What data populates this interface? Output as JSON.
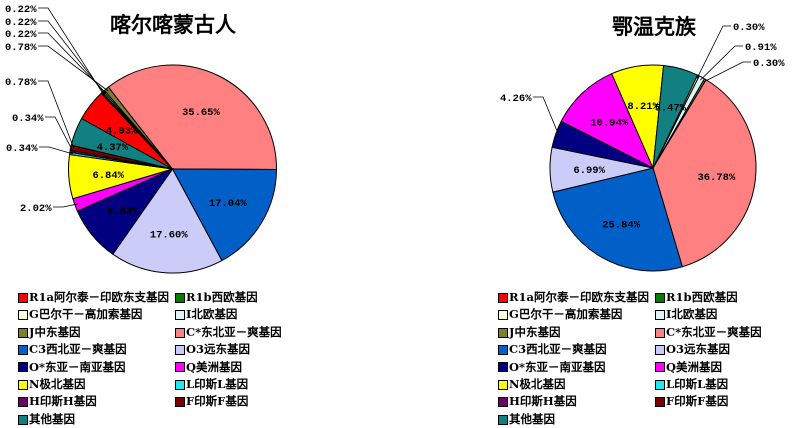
{
  "chart_data": [
    {
      "type": "pie",
      "title": "喀尔喀蒙古人",
      "categories": [
        "R1a阿尔泰－印欧东支基因",
        "R1b西欧基因",
        "G巴尔干－高加索基因",
        "I北欧基因",
        "J中东基因",
        "C*东北亚－爽基因",
        "C3西北亚－爽基因",
        "O3远东基因",
        "O*东亚－南亚基因",
        "Q美洲基因",
        "N极北基因",
        "L印斯L基因",
        "H印斯H基因",
        "F印斯F基因",
        "其他基因"
      ],
      "values": [
        4.93,
        0.22,
        0.22,
        0.22,
        0.78,
        35.65,
        17.04,
        17.6,
        8.63,
        2.02,
        6.84,
        0.34,
        0.34,
        0.78,
        4.37
      ],
      "labels": [
        "4.93%",
        "0.22%",
        "0.22%",
        "0.22%",
        "0.78%",
        "35.65%",
        "17.04%",
        "17.60%",
        "8.63%",
        "2.02%",
        "6.84%",
        "0.34%",
        "0.34%",
        "0.78%",
        "4.37%"
      ],
      "legend": "bottom"
    },
    {
      "type": "pie",
      "title": "鄂温克族",
      "categories": [
        "R1a阿尔泰－印欧东支基因",
        "R1b西欧基因",
        "G巴尔干－高加索基因",
        "I北欧基因",
        "J中东基因",
        "C*东北亚－爽基因",
        "C3西北亚－爽基因",
        "O3远东基因",
        "O*东亚－南亚基因",
        "Q美洲基因",
        "N极北基因",
        "L印斯L基因",
        "H印斯H基因",
        "F印斯F基因",
        "其他基因"
      ],
      "values": [
        0,
        0,
        0.3,
        0.91,
        0.3,
        36.78,
        25.84,
        6.99,
        4.26,
        10.94,
        8.21,
        0,
        0,
        0,
        5.47
      ],
      "labels": [
        "",
        "",
        "0.30%",
        "0.91%",
        "0.30%",
        "36.78%",
        "25.84%",
        "6.99%",
        "4.26%",
        "10.94%",
        "8.21%",
        "",
        "",
        "",
        "5.47%"
      ],
      "legend": "bottom"
    }
  ],
  "colors": [
    "#FF0000",
    "#087A08",
    "#FFFFE0",
    "#DDF6FA",
    "#7F7F30",
    "#FF8080",
    "#0060C8",
    "#CCCCF8",
    "#000080",
    "#FF00FF",
    "#FFFF00",
    "#20E8F0",
    "#6A006A",
    "#7A0000",
    "#108080"
  ]
}
